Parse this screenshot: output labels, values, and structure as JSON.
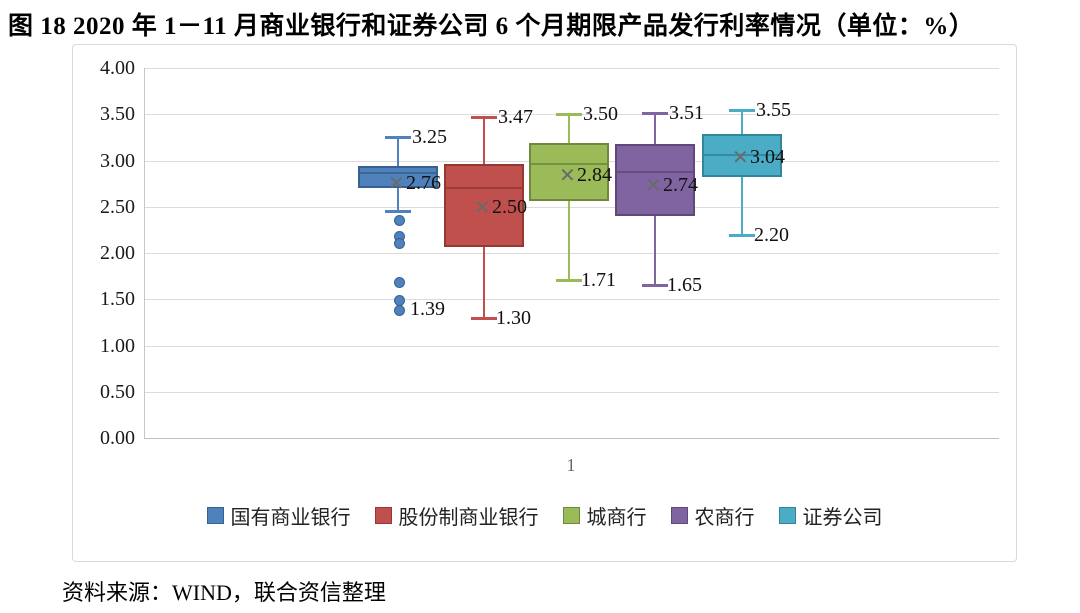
{
  "page": {
    "title": "图 18  2020 年 1－11 月商业银行和证券公司 6 个月期限产品发行利率情况（单位：%）",
    "source": "资料来源：WIND，联合资信整理"
  },
  "chart_data": {
    "type": "boxplot",
    "title": "2020 年 1－11 月商业银行和证券公司 6 个月期限产品发行利率情况",
    "unit": "%",
    "x_categories": [
      "1"
    ],
    "ylim": [
      0,
      4
    ],
    "ytick_step": 0.5,
    "ytick_labels": [
      "0.00",
      "0.50",
      "1.00",
      "1.50",
      "2.00",
      "2.50",
      "3.00",
      "3.50",
      "4.00"
    ],
    "grid": true,
    "legend_position": "bottom",
    "series": [
      {
        "name": "国有商业银行",
        "fill": "#4F81BD",
        "border": "#38618E",
        "q1": 2.7,
        "median": 2.86,
        "q3": 2.94,
        "mean": 2.76,
        "whisker_low": 2.45,
        "whisker_high": 3.25,
        "outliers": [
          2.36,
          2.19,
          2.11,
          1.69,
          1.5,
          1.39
        ],
        "labels": {
          "high": "3.25",
          "mean": "2.76",
          "low": "1.39"
        }
      },
      {
        "name": "股份制商业银行",
        "fill": "#C0504D",
        "border": "#953735",
        "q1": 2.07,
        "median": 2.7,
        "q3": 2.96,
        "mean": 2.5,
        "whisker_low": 1.3,
        "whisker_high": 3.47,
        "outliers": [],
        "labels": {
          "high": "3.47",
          "mean": "2.50",
          "low": "1.30"
        }
      },
      {
        "name": "城商行",
        "fill": "#9BBB59",
        "border": "#71893F",
        "q1": 2.56,
        "median": 2.96,
        "q3": 3.19,
        "mean": 2.84,
        "whisker_low": 1.71,
        "whisker_high": 3.5,
        "outliers": [],
        "labels": {
          "high": "3.50",
          "mean": "2.84",
          "low": "1.71"
        }
      },
      {
        "name": "农商行",
        "fill": "#8064A2",
        "border": "#5F497A",
        "q1": 2.4,
        "median": 2.88,
        "q3": 3.18,
        "mean": 2.74,
        "whisker_low": 1.65,
        "whisker_high": 3.51,
        "outliers": [],
        "labels": {
          "high": "3.51",
          "mean": "2.74",
          "low": "1.65"
        }
      },
      {
        "name": "证券公司",
        "fill": "#4BACC6",
        "border": "#31859C",
        "q1": 2.82,
        "median": 3.06,
        "q3": 3.29,
        "mean": 3.04,
        "whisker_low": 2.2,
        "whisker_high": 3.55,
        "outliers": [],
        "labels": {
          "high": "3.55",
          "mean": "3.04",
          "low": "2.20"
        }
      }
    ]
  }
}
